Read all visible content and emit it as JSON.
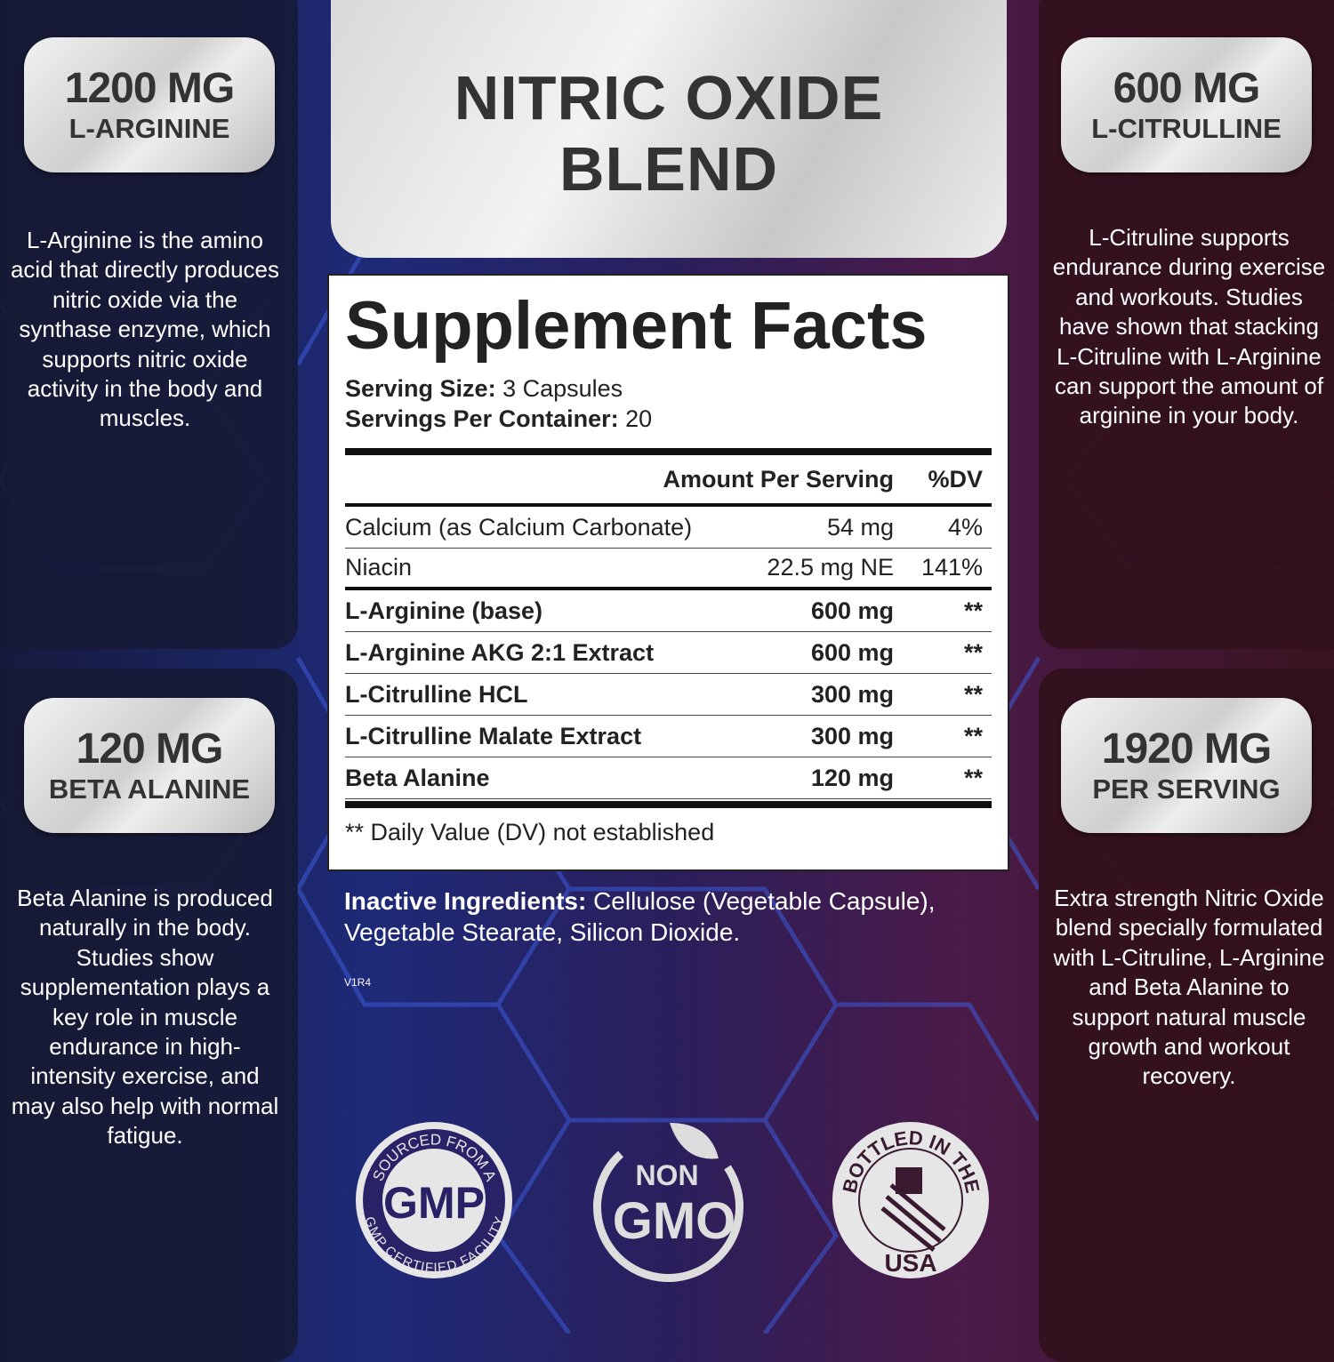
{
  "colors": {
    "left_panel": "#161a3c",
    "right_panel": "#30101a",
    "pill": "#e0e0e0",
    "text_dark": "#333333"
  },
  "title": {
    "line1": "NITRIC OXIDE",
    "line2": "BLEND"
  },
  "callouts": [
    {
      "amount": "1200 MG",
      "name": "L-ARGININE",
      "description": "L-Arginine is the amino acid that directly produces nitric oxide via the synthase enzyme, which supports nitric oxide activity in the body and muscles."
    },
    {
      "amount": "600 MG",
      "name": "L-CITRULLINE",
      "description": "L-Citruline supports endurance during exercise and workouts. Studies have shown that stacking L-Citruline with L-Arginine can support the amount of arginine in your body."
    },
    {
      "amount": "120 MG",
      "name": "BETA ALANINE",
      "description": "Beta Alanine is produced naturally in the body. Studies show supplementation plays a key role in muscle endurance in high-intensity exercise, and may also help with normal fatigue."
    },
    {
      "amount": "1920 MG",
      "name": "PER SERVING",
      "description": "Extra strength Nitric Oxide blend specially formulated with L-Citruline, L-Arginine and Beta Alanine to support natural muscle growth and workout recovery."
    }
  ],
  "facts": {
    "heading": "Supplement Facts",
    "serving_size_label": "Serving Size:",
    "serving_size": " 3 Capsules",
    "servings_label": "Servings Per Container:",
    "servings": " 20",
    "col_amount": "Amount Per Serving",
    "col_dv": "%DV",
    "rows": [
      {
        "name": "Calcium (as Calcium Carbonate)",
        "amount": "54 mg",
        "dv": "4%"
      },
      {
        "name": "Niacin",
        "amount": "22.5 mg NE",
        "dv": "141%"
      },
      {
        "name": "L-Arginine (base)",
        "amount": "600 mg",
        "dv": "**"
      },
      {
        "name": "L-Arginine AKG 2:1 Extract",
        "amount": "600 mg",
        "dv": "**"
      },
      {
        "name": "L-Citrulline HCL",
        "amount": "300 mg",
        "dv": "**"
      },
      {
        "name": "L-Citrulline Malate Extract",
        "amount": "300 mg",
        "dv": "**"
      },
      {
        "name": "Beta Alanine",
        "amount": "120 mg",
        "dv": "**"
      }
    ],
    "footnote": "** Daily Value (DV) not established"
  },
  "inactive": {
    "label": "Inactive Ingredients:",
    "text": " Cellulose (Vegetable Capsule),",
    "line2": "Vegetable Stearate, Silicon Dioxide."
  },
  "version": "V1R4",
  "badges": {
    "gmp": {
      "top": "SOURCED FROM A",
      "center": "GMP",
      "bottom": "GMP CERTIFIED FACILITY"
    },
    "nongmo": {
      "line1": "NON",
      "line2": "GMO"
    },
    "usa": {
      "top": "BOTTLED IN THE",
      "bottom": "USA",
      "icon": "us-flag-icon"
    }
  }
}
